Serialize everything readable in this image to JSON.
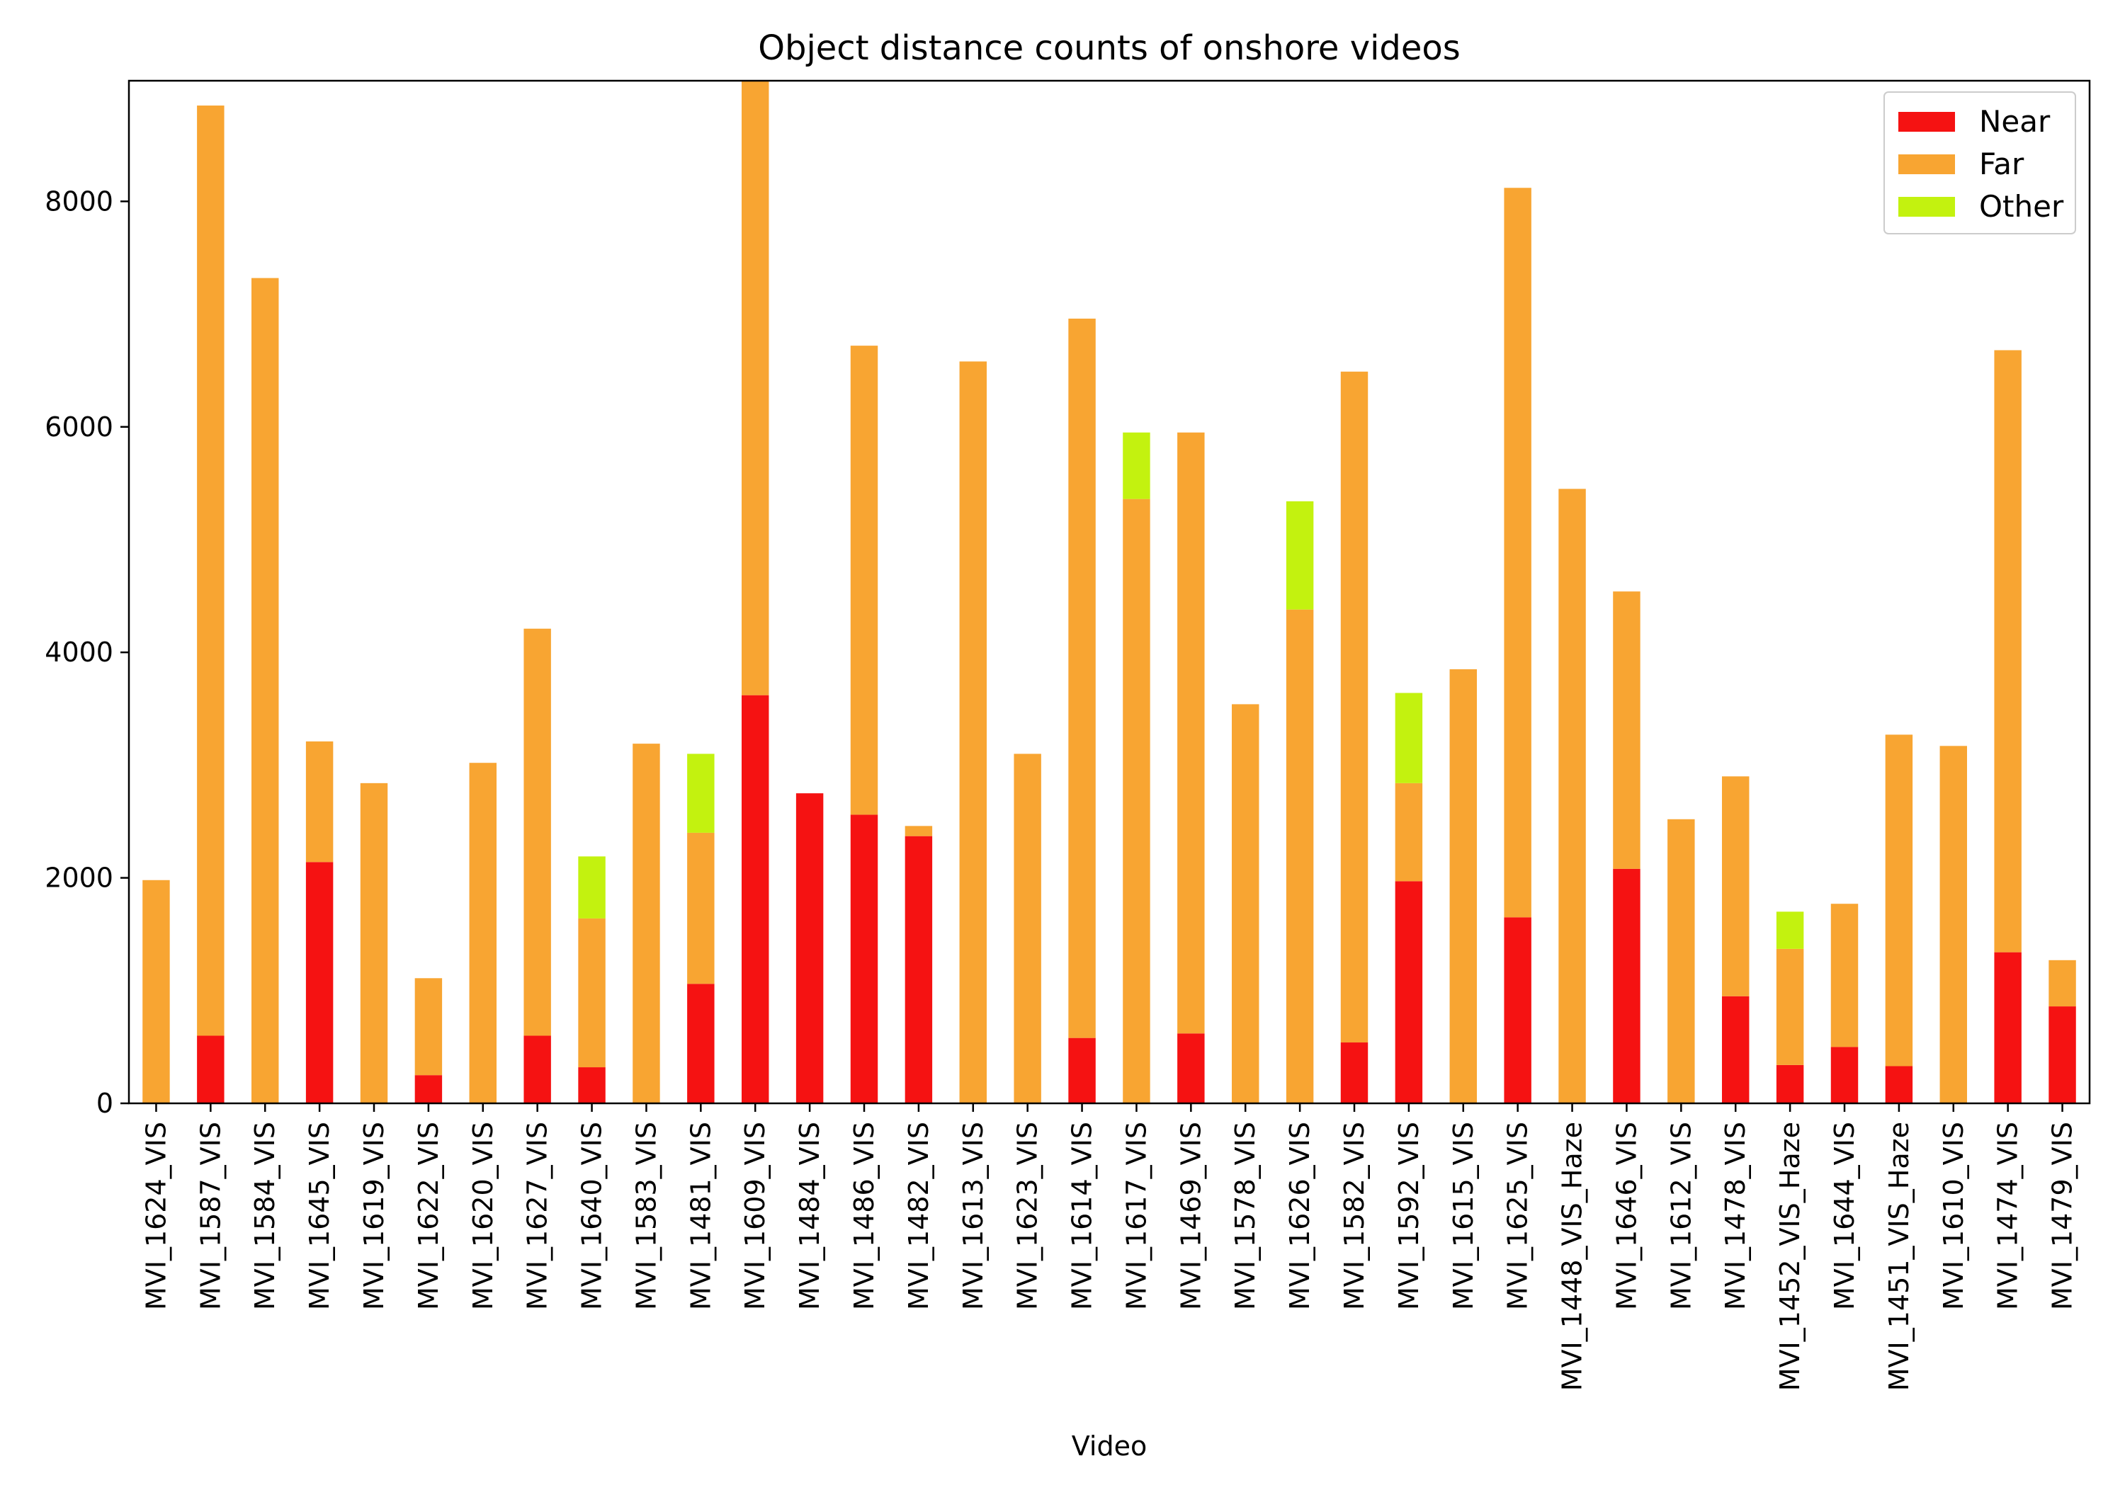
{
  "chart_data": {
    "type": "bar",
    "stacked": true,
    "title": "Object distance counts of onshore videos",
    "xlabel": "Video",
    "ylabel": "",
    "ylim": [
      0,
      9070
    ],
    "yticks": [
      0,
      2000,
      4000,
      6000,
      8000
    ],
    "grid": false,
    "legend_position": "top-right",
    "categories": [
      "MVI_1624_VIS",
      "MVI_1587_VIS",
      "MVI_1584_VIS",
      "MVI_1645_VIS",
      "MVI_1619_VIS",
      "MVI_1622_VIS",
      "MVI_1620_VIS",
      "MVI_1627_VIS",
      "MVI_1640_VIS",
      "MVI_1583_VIS",
      "MVI_1481_VIS",
      "MVI_1609_VIS",
      "MVI_1484_VIS",
      "MVI_1486_VIS",
      "MVI_1482_VIS",
      "MVI_1613_VIS",
      "MVI_1623_VIS",
      "MVI_1614_VIS",
      "MVI_1617_VIS",
      "MVI_1469_VIS",
      "MVI_1578_VIS",
      "MVI_1626_VIS",
      "MVI_1582_VIS",
      "MVI_1592_VIS",
      "MVI_1615_VIS",
      "MVI_1625_VIS",
      "MVI_1448_VIS_Haze",
      "MVI_1646_VIS",
      "MVI_1612_VIS",
      "MVI_1478_VIS",
      "MVI_1452_VIS_Haze",
      "MVI_1644_VIS",
      "MVI_1451_VIS_Haze",
      "MVI_1610_VIS",
      "MVI_1474_VIS",
      "MVI_1479_VIS"
    ],
    "series": [
      {
        "name": "Near",
        "color": "#f51212",
        "values": [
          0,
          600,
          0,
          2140,
          0,
          250,
          0,
          600,
          320,
          0,
          1060,
          3620,
          2750,
          2560,
          2370,
          0,
          0,
          580,
          0,
          620,
          0,
          0,
          540,
          1970,
          0,
          1650,
          0,
          2080,
          0,
          950,
          340,
          500,
          330,
          0,
          1340,
          860
        ]
      },
      {
        "name": "Far",
        "color": "#f8a532",
        "values": [
          1980,
          8250,
          7320,
          1070,
          2840,
          860,
          3020,
          3610,
          1320,
          3190,
          1340,
          5450,
          0,
          4160,
          90,
          6580,
          3100,
          6380,
          5360,
          5330,
          3540,
          4380,
          5950,
          870,
          3850,
          6470,
          5450,
          2460,
          2520,
          1950,
          1030,
          1270,
          2940,
          3170,
          5340,
          410
        ]
      },
      {
        "name": "Other",
        "color": "#c3f20f",
        "values": [
          0,
          0,
          0,
          0,
          0,
          0,
          0,
          0,
          550,
          0,
          700,
          0,
          0,
          0,
          0,
          0,
          0,
          0,
          590,
          0,
          0,
          960,
          0,
          800,
          0,
          0,
          0,
          0,
          0,
          0,
          330,
          0,
          0,
          0,
          0,
          0
        ]
      }
    ]
  }
}
